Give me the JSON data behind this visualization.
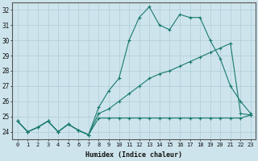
{
  "title": "",
  "xlabel": "Humidex (Indice chaleur)",
  "bg_color": "#cde4ec",
  "grid_color": "#b0cdd8",
  "line_color": "#1a7a6e",
  "xlim": [
    -0.5,
    23.5
  ],
  "ylim": [
    23.5,
    32.5
  ],
  "xticks": [
    0,
    1,
    2,
    3,
    4,
    5,
    6,
    7,
    8,
    9,
    10,
    11,
    12,
    13,
    14,
    15,
    16,
    17,
    18,
    19,
    20,
    21,
    22,
    23
  ],
  "yticks": [
    24,
    25,
    26,
    27,
    28,
    29,
    30,
    31,
    32
  ],
  "line1_x": [
    0,
    1,
    2,
    3,
    4,
    5,
    6,
    7,
    8,
    9,
    10,
    11,
    12,
    13,
    14,
    15,
    16,
    17,
    18,
    19,
    20,
    21,
    22,
    23
  ],
  "line1_y": [
    24.7,
    24.0,
    24.3,
    24.7,
    24.0,
    24.5,
    24.1,
    23.8,
    24.9,
    24.9,
    24.9,
    24.9,
    24.9,
    24.9,
    24.9,
    24.9,
    24.9,
    24.9,
    24.9,
    24.9,
    24.9,
    24.9,
    24.9,
    25.1
  ],
  "line2_x": [
    0,
    1,
    2,
    3,
    4,
    5,
    6,
    7,
    8,
    9,
    10,
    11,
    12,
    13,
    14,
    15,
    16,
    17,
    18,
    19,
    20,
    21,
    22,
    23
  ],
  "line2_y": [
    24.7,
    24.0,
    24.3,
    24.7,
    24.0,
    24.5,
    24.1,
    23.8,
    25.2,
    25.5,
    26.0,
    26.5,
    27.0,
    27.5,
    27.8,
    28.0,
    28.3,
    28.6,
    28.9,
    29.2,
    29.5,
    29.8,
    25.2,
    25.1
  ],
  "line3_x": [
    0,
    1,
    2,
    3,
    4,
    5,
    6,
    7,
    8,
    9,
    10,
    11,
    12,
    13,
    14,
    15,
    16,
    17,
    18,
    19,
    20,
    21,
    22,
    23
  ],
  "line3_y": [
    24.7,
    24.0,
    24.3,
    24.7,
    24.0,
    24.5,
    24.1,
    23.8,
    25.6,
    26.7,
    27.5,
    30.0,
    31.5,
    32.2,
    31.0,
    30.7,
    31.7,
    31.5,
    31.5,
    30.0,
    28.8,
    27.0,
    26.0,
    25.2
  ]
}
